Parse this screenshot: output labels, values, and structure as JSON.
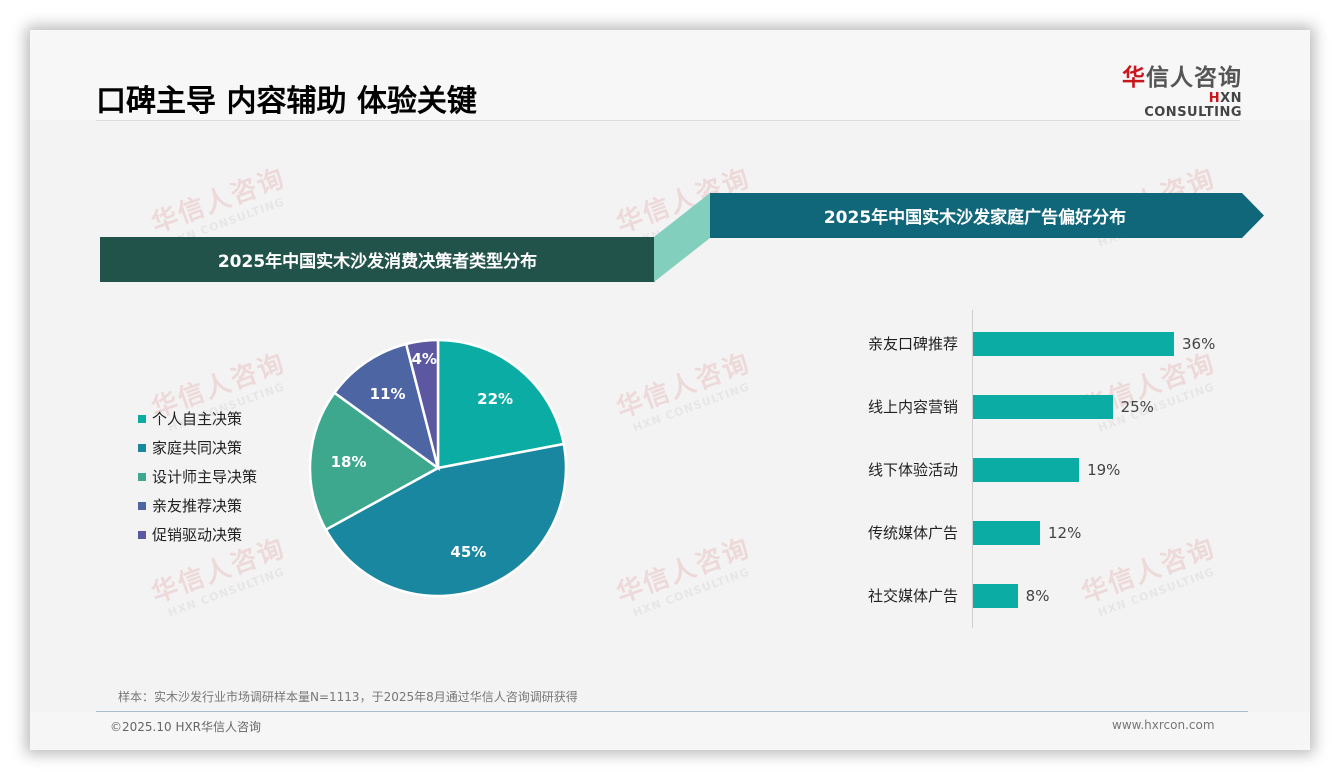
{
  "header": {
    "title": "口碑主导 内容辅助 体验关键",
    "logo_cn_first": "华",
    "logo_cn_rest": "信人咨询",
    "logo_en_mark": "H",
    "logo_en_rest": "XN CONSULTING"
  },
  "watermark": {
    "cn": "华信人咨询",
    "en": "HXN CONSULTING"
  },
  "sections": {
    "left_title": "2025年中国实木沙发消费决策者类型分布",
    "right_title": "2025年中国实木沙发家庭广告偏好分布"
  },
  "colors": {
    "left_ribbon": "#22534a",
    "right_ribbon": "#11677a",
    "fold": "#83cfbd",
    "bar": "#0aaca3",
    "brand_red": "#c8161d"
  },
  "chart_data": [
    {
      "type": "pie",
      "title": "2025年中国实木沙发消费决策者类型分布",
      "categories": [
        "个人自主决策",
        "家庭共同决策",
        "设计师主导决策",
        "亲友推荐决策",
        "促销驱动决策"
      ],
      "values": [
        22,
        45,
        18,
        11,
        4
      ],
      "labels": [
        "22%",
        "45%",
        "18%",
        "11%",
        "4%"
      ],
      "colors": [
        "#0aaca3",
        "#1a87a0",
        "#3ea88f",
        "#4e65a3",
        "#5b57a0"
      ],
      "legend_position": "left",
      "start_angle": "12 o'clock, clockwise"
    },
    {
      "type": "bar",
      "orientation": "horizontal",
      "title": "2025年中国实木沙发家庭广告偏好分布",
      "categories": [
        "亲友口碑推荐",
        "线上内容营销",
        "线下体验活动",
        "传统媒体广告",
        "社交媒体广告"
      ],
      "values": [
        36,
        25,
        19,
        12,
        8
      ],
      "labels": [
        "36%",
        "25%",
        "19%",
        "12%",
        "8%"
      ],
      "color": "#0aaca3",
      "grid": false,
      "xlim": [
        0,
        40
      ]
    }
  ],
  "footer": {
    "note": "样本：实木沙发行业市场调研样本量N=1113，于2025年8月通过华信人咨询调研获得",
    "copyright": "©2025.10 HXR华信人咨询",
    "website": "www.hxrcon.com"
  }
}
